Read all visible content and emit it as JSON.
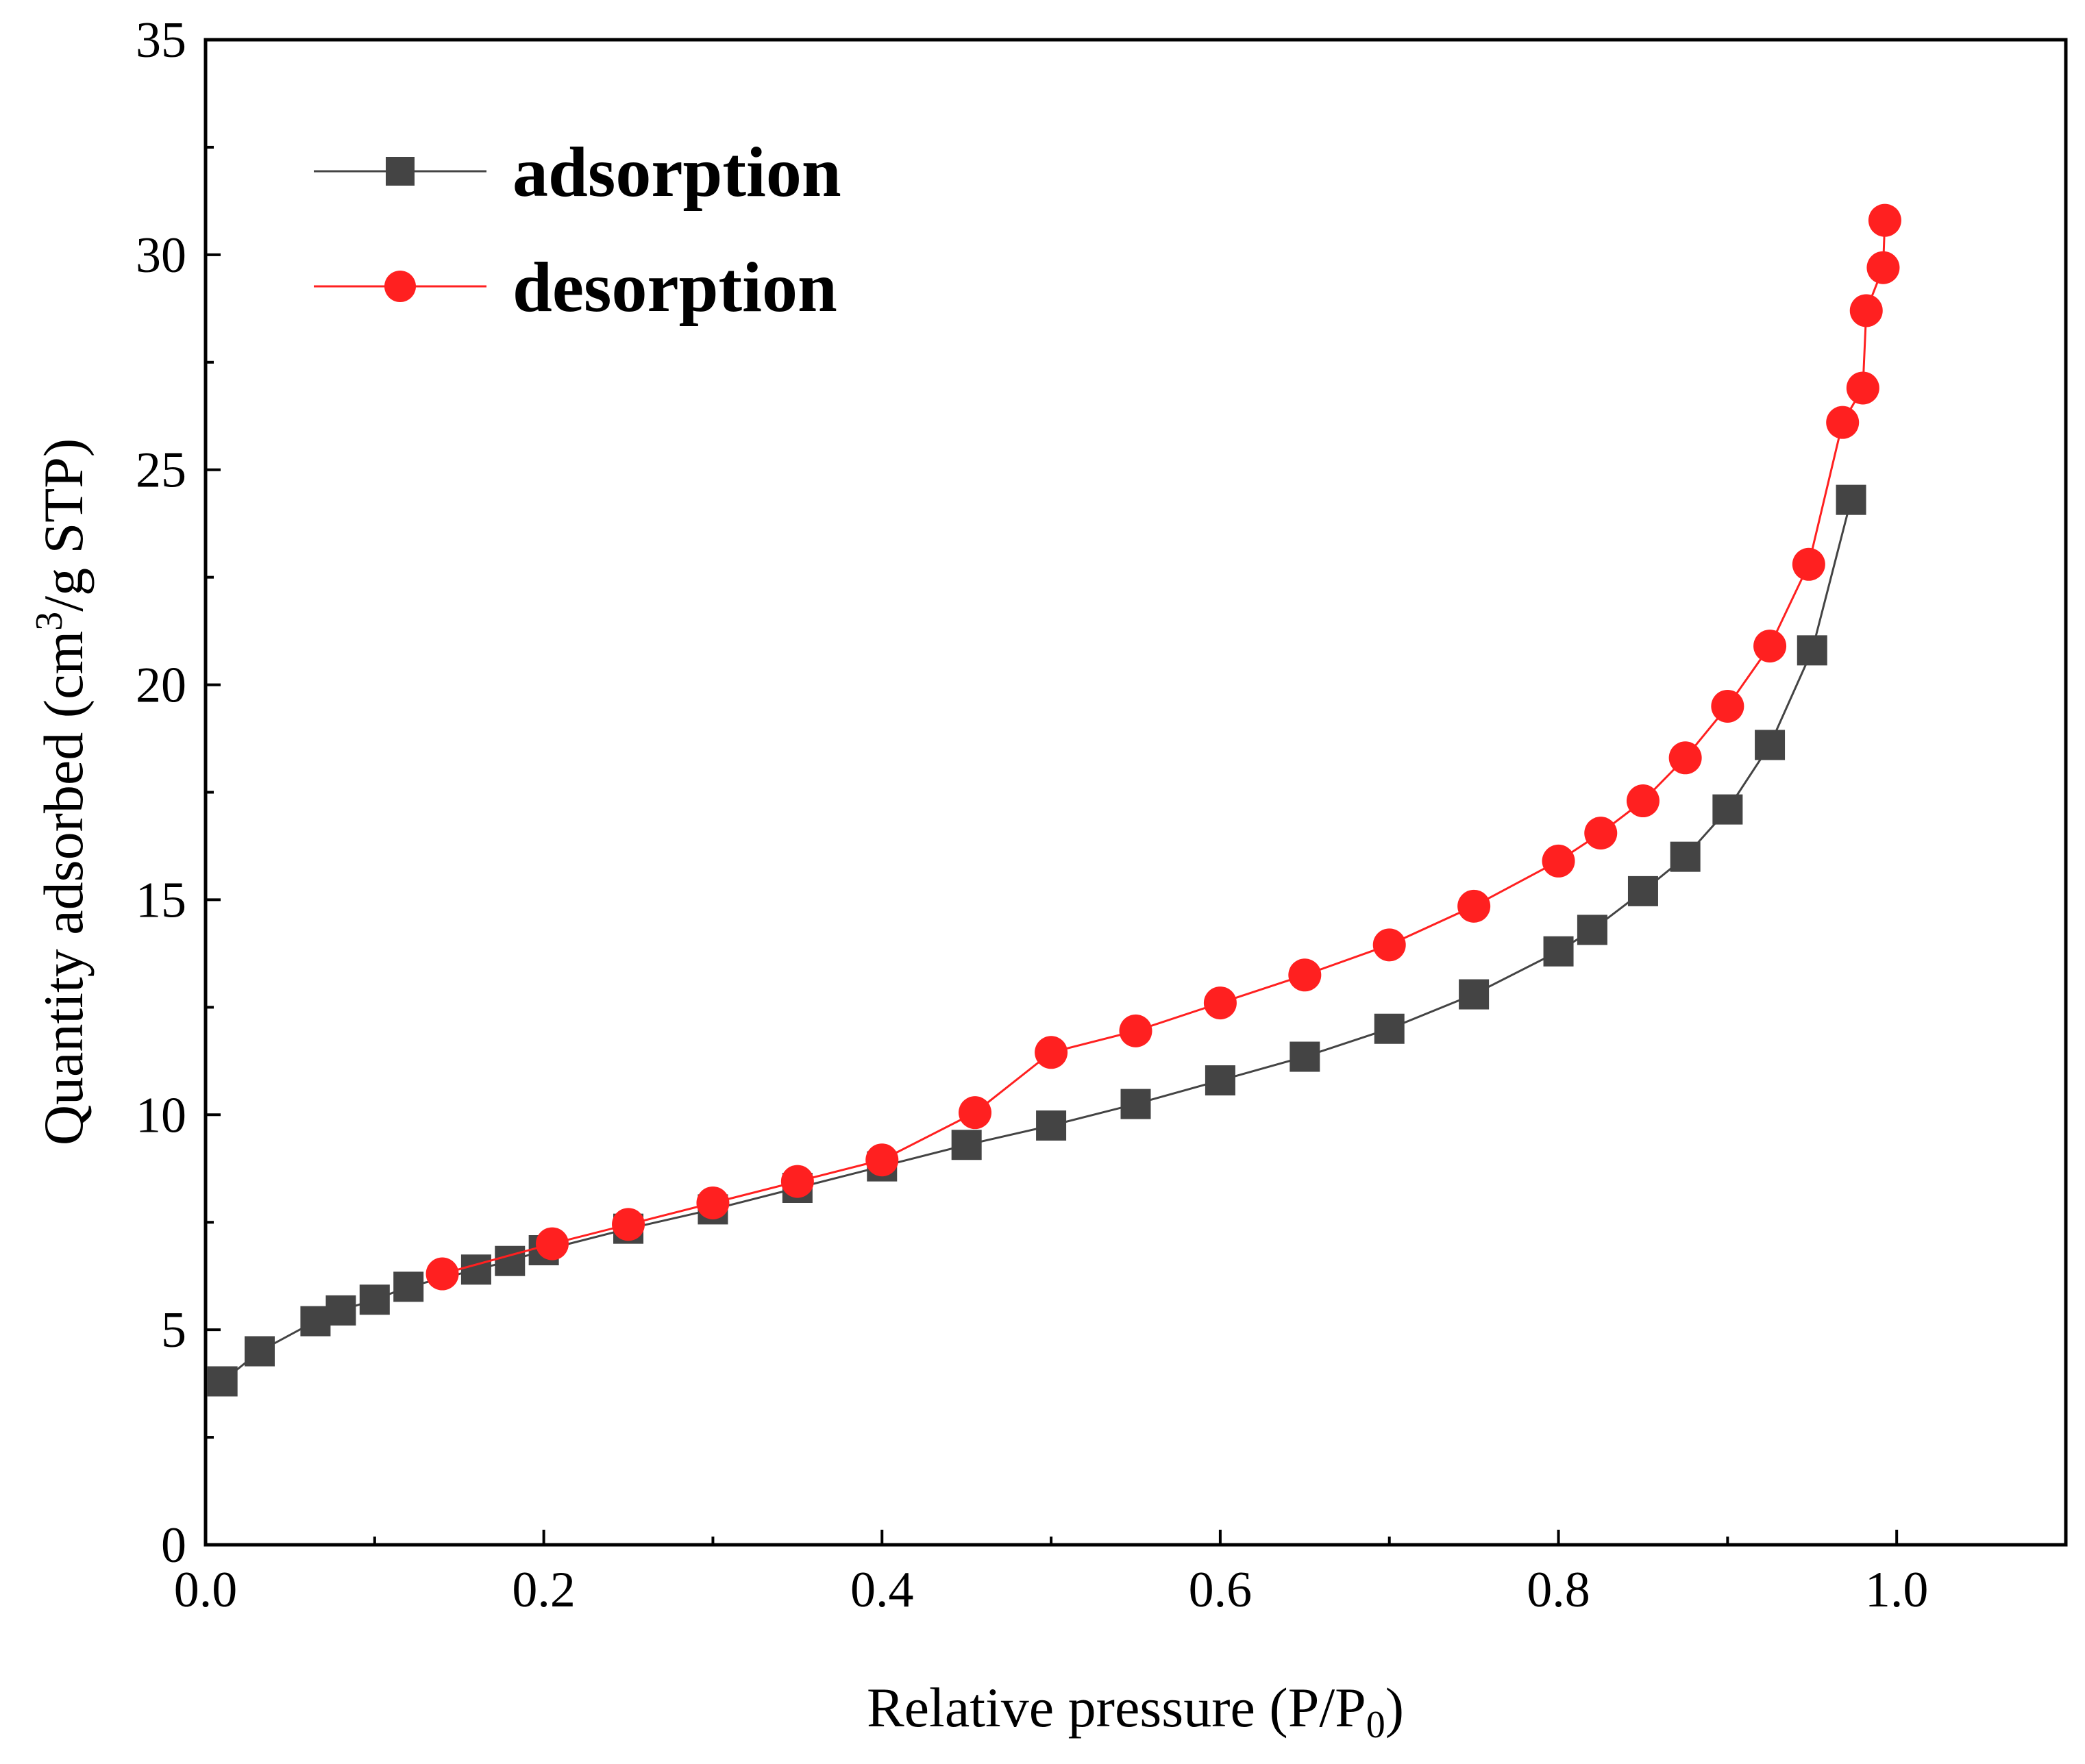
{
  "chart_data": {
    "type": "line",
    "xlabel_main": "Relative pressure (P/P",
    "xlabel_sub": "0",
    "xlabel_end": ")",
    "ylabel_main": "Quantity adsorbed (cm",
    "ylabel_sup": "3",
    "ylabel_end": "/g STP)",
    "xlim": [
      0.0,
      1.1
    ],
    "ylim": [
      0,
      35
    ],
    "x_ticks": [
      0.0,
      0.2,
      0.4,
      0.6,
      0.8,
      1.0
    ],
    "x_tick_labels": [
      "0.0",
      "0.2",
      "0.4",
      "0.6",
      "0.8",
      "1.0"
    ],
    "y_ticks": [
      0,
      5,
      10,
      15,
      20,
      25,
      30,
      35
    ],
    "y_tick_labels": [
      "0",
      "5",
      "10",
      "15",
      "20",
      "25",
      "30",
      "35"
    ],
    "grid": false,
    "legend_position": "top-left",
    "series": [
      {
        "name": "adsorption",
        "color": "#444444",
        "marker": "square",
        "x": [
          0.01,
          0.032,
          0.065,
          0.08,
          0.1,
          0.12,
          0.16,
          0.18,
          0.2,
          0.25,
          0.3,
          0.35,
          0.4,
          0.45,
          0.5,
          0.55,
          0.6,
          0.65,
          0.7,
          0.75,
          0.8,
          0.82,
          0.85,
          0.875,
          0.9,
          0.925,
          0.95,
          0.973
        ],
        "y": [
          3.8,
          4.5,
          5.2,
          5.45,
          5.7,
          6.0,
          6.4,
          6.6,
          6.85,
          7.35,
          7.8,
          8.3,
          8.8,
          9.3,
          9.75,
          10.25,
          10.8,
          11.35,
          12.0,
          12.8,
          13.8,
          14.3,
          15.2,
          16.0,
          17.1,
          18.6,
          20.8,
          24.3
        ]
      },
      {
        "name": "desorption",
        "color": "#ff2020",
        "marker": "circle",
        "x": [
          0.993,
          0.992,
          0.982,
          0.98,
          0.968,
          0.948,
          0.925,
          0.9,
          0.875,
          0.85,
          0.825,
          0.8,
          0.75,
          0.7,
          0.65,
          0.6,
          0.55,
          0.5,
          0.455,
          0.4,
          0.35,
          0.3,
          0.25,
          0.205,
          0.14
        ],
        "y": [
          30.8,
          29.7,
          28.7,
          26.9,
          26.1,
          22.8,
          20.9,
          19.5,
          18.3,
          17.3,
          16.55,
          15.9,
          14.85,
          13.95,
          13.25,
          12.6,
          11.95,
          11.45,
          10.05,
          8.95,
          8.45,
          7.95,
          7.45,
          7.0,
          6.3
        ]
      }
    ]
  }
}
